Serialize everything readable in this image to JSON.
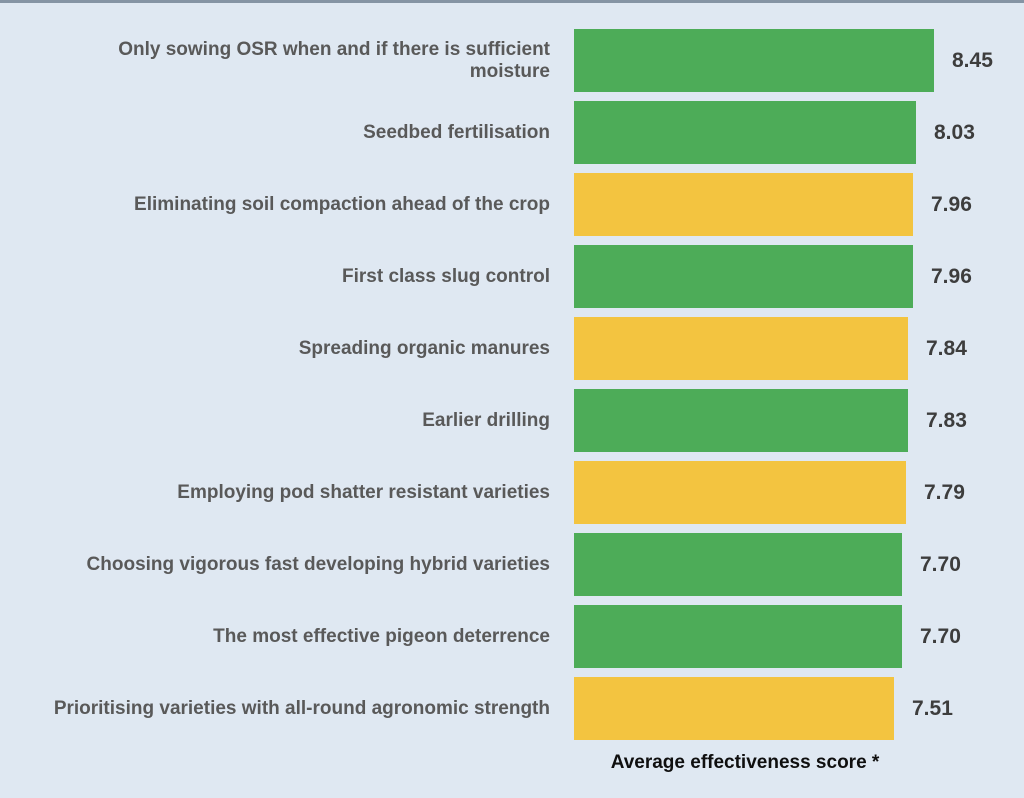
{
  "page": {
    "background_color": "#dfe8f2",
    "top_strip_color": "#8594a4"
  },
  "colors": {
    "green": "#4dac58",
    "yellow": "#f3c440",
    "category_label": "#595959",
    "value_label": "#3d3d3d",
    "axis_label": "#0f0f0f"
  },
  "chart_data": {
    "type": "bar",
    "orientation": "horizontal",
    "title": "",
    "xlabel": "Average effectiveness score *",
    "ylabel": "",
    "xlim": [
      0,
      9
    ],
    "axes_visible": false,
    "grid": false,
    "legend": false,
    "categories": [
      "Only sowing OSR when and if there is sufficient moisture",
      "Seedbed fertilisation",
      "Eliminating soil compaction ahead of the crop",
      "First class slug control",
      "Spreading organic manures",
      "Earlier drilling",
      "Employing pod shatter resistant varieties",
      "Choosing vigorous fast developing hybrid varieties",
      "The most effective pigeon deterrence",
      "Prioritising varieties with all-round agronomic strength"
    ],
    "values": [
      8.45,
      8.03,
      7.96,
      7.96,
      7.84,
      7.83,
      7.79,
      7.7,
      7.7,
      7.51
    ],
    "value_labels": [
      "8.45",
      "8.03",
      "7.96",
      "7.96",
      "7.84",
      "7.83",
      "7.79",
      "7.70",
      "7.70",
      "7.51"
    ],
    "bar_colors": [
      "green",
      "green",
      "yellow",
      "green",
      "yellow",
      "green",
      "yellow",
      "green",
      "green",
      "yellow"
    ]
  }
}
